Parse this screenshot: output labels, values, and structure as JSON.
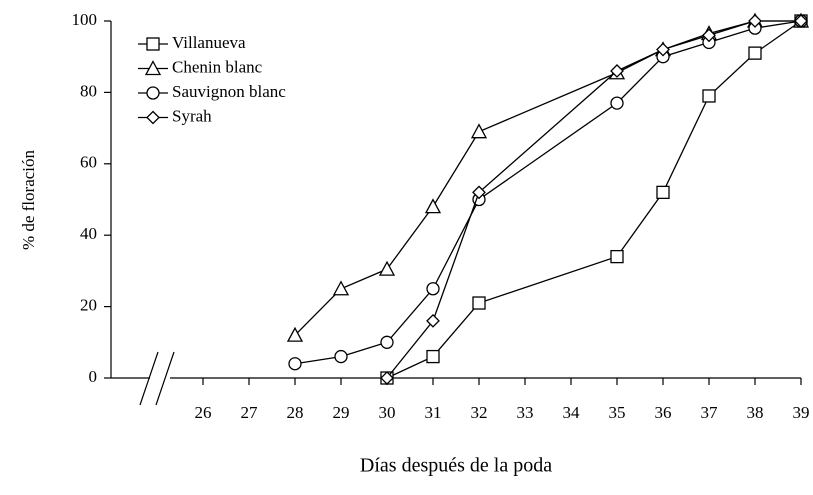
{
  "chart_data": {
    "type": "line",
    "x_label": "Días después de la poda",
    "y_label": "% de floración",
    "x": [
      28,
      29,
      30,
      31,
      32,
      35,
      36,
      37,
      38,
      39
    ],
    "xlim": [
      24,
      39
    ],
    "xticks": [
      26,
      27,
      28,
      29,
      30,
      31,
      32,
      33,
      34,
      35,
      36,
      37,
      38,
      39
    ],
    "ylim": [
      0,
      100
    ],
    "yticks": [
      0,
      20,
      40,
      60,
      80,
      100
    ],
    "legend": "top-left",
    "series": [
      {
        "name": "Villanueva",
        "color": "#000000",
        "marker": "square",
        "values": [
          null,
          null,
          0,
          6,
          21,
          34,
          52,
          79,
          91,
          100
        ]
      },
      {
        "name": "Chenin blanc",
        "color": "#000000",
        "marker": "triangle",
        "values": [
          12,
          25,
          30.5,
          48,
          69,
          85.5,
          92,
          96.5,
          100,
          100
        ]
      },
      {
        "name": "Sauvignon blanc",
        "color": "#000000",
        "marker": "circle",
        "values": [
          4,
          6,
          10,
          25,
          50,
          77,
          90,
          94,
          98,
          100
        ]
      },
      {
        "name": "Syrah",
        "color": "#000000",
        "marker": "diamond",
        "values": [
          null,
          null,
          0,
          16,
          52,
          86,
          92,
          96,
          100,
          100
        ]
      }
    ]
  }
}
